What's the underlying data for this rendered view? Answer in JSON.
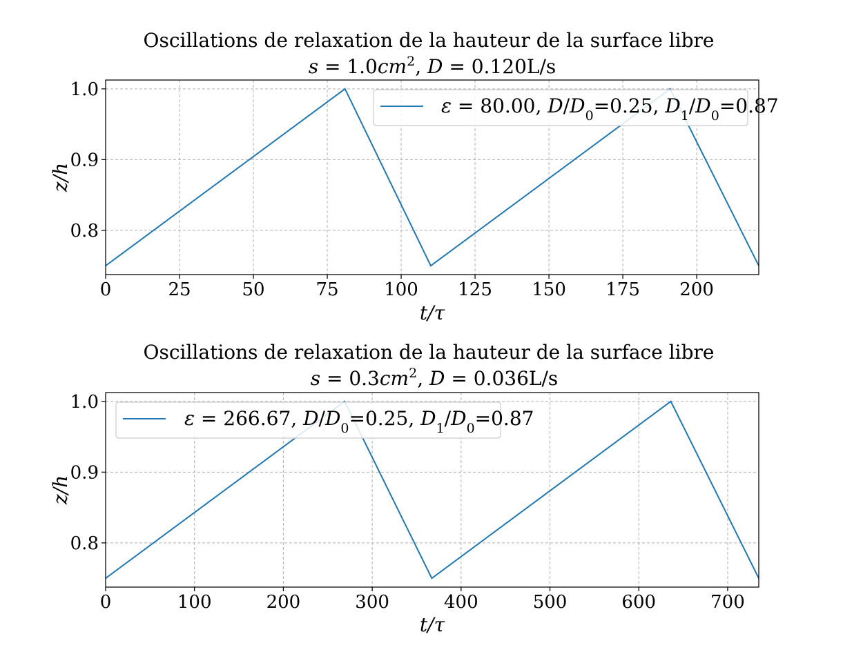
{
  "colors": {
    "series": "#1f77b4",
    "grid": "#b0b0b0"
  },
  "chart_data": [
    {
      "type": "line",
      "title": "Oscillations de relaxation de la hauteur de la surface libre",
      "subtitle": "s = 1.0cm², D = 0.120L/s",
      "xlabel": "t/τ",
      "ylabel": "z/h",
      "xlim": [
        0,
        221
      ],
      "ylim": [
        0.7375,
        1.0125
      ],
      "xticks": [
        0,
        25,
        50,
        75,
        100,
        125,
        150,
        175,
        200
      ],
      "yticks": [
        0.8,
        0.9,
        1.0
      ],
      "ytick_labels": [
        "0.8",
        "0.9",
        "1.0"
      ],
      "grid": true,
      "legend_position": "upper right",
      "series": [
        {
          "name": "ε = 80.00, D/D0=0.25, D1/D0=0.87",
          "x": [
            0,
            81,
            110,
            191,
            221
          ],
          "y": [
            0.75,
            1.0,
            0.75,
            1.0,
            0.75
          ]
        }
      ]
    },
    {
      "type": "line",
      "title": "Oscillations de relaxation de la hauteur de la surface libre",
      "subtitle": "s = 0.3cm², D = 0.036L/s",
      "xlabel": "t/τ",
      "ylabel": "z/h",
      "xlim": [
        0,
        735
      ],
      "ylim": [
        0.7375,
        1.0125
      ],
      "xticks": [
        0,
        100,
        200,
        300,
        400,
        500,
        600,
        700
      ],
      "yticks": [
        0.8,
        0.9,
        1.0
      ],
      "ytick_labels": [
        "0.8",
        "0.9",
        "1.0"
      ],
      "grid": true,
      "legend_position": "upper left",
      "series": [
        {
          "name": "ε = 266.67, D/D0=0.25, D1/D0=0.87",
          "x": [
            0,
            269,
            367,
            636,
            735
          ],
          "y": [
            0.75,
            1.0,
            0.75,
            1.0,
            0.75
          ]
        }
      ]
    }
  ]
}
